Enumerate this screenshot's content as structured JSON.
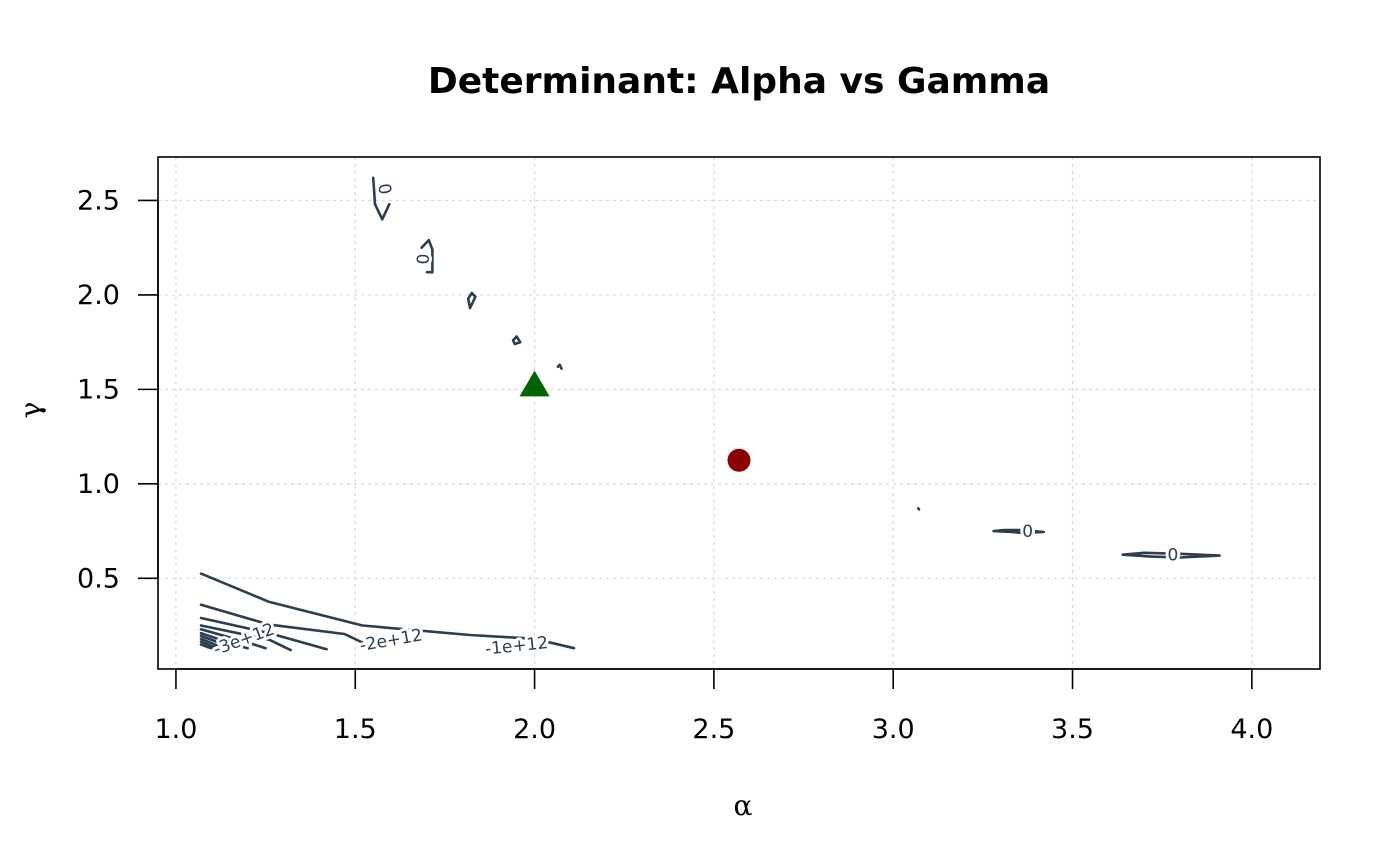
{
  "chart_data": {
    "type": "contour",
    "title": "Determinant: Alpha vs Gamma",
    "xlabel": "α",
    "ylabel": "γ",
    "xlim": [
      0.95,
      4.19
    ],
    "ylim": [
      0.02,
      2.73
    ],
    "x_ticks": [
      1.0,
      1.5,
      2.0,
      2.5,
      3.0,
      3.5,
      4.0
    ],
    "x_tick_labels": [
      "1.0",
      "1.5",
      "2.0",
      "2.5",
      "3.0",
      "3.5",
      "4.0"
    ],
    "y_ticks": [
      0.5,
      1.0,
      1.5,
      2.0,
      2.5
    ],
    "y_tick_labels": [
      "0.5",
      "1.0",
      "1.5",
      "2.0",
      "2.5"
    ],
    "grid": true,
    "contour_color": "#2c3e50",
    "contours": [
      {
        "level": "-1e+12",
        "points": [
          [
            1.07,
            0.525
          ],
          [
            1.26,
            0.375
          ],
          [
            1.52,
            0.25
          ],
          [
            1.82,
            0.2
          ],
          [
            2.0,
            0.18
          ],
          [
            2.11,
            0.13
          ]
        ]
      },
      {
        "level": "-2e+12",
        "points": [
          [
            1.07,
            0.36
          ],
          [
            1.26,
            0.255
          ],
          [
            1.47,
            0.205
          ],
          [
            1.52,
            0.16
          ]
        ]
      },
      {
        "level": "-3e+12",
        "points": [
          [
            1.07,
            0.29
          ],
          [
            1.26,
            0.21
          ],
          [
            1.42,
            0.125
          ]
        ]
      },
      {
        "level": "",
        "points": [
          [
            1.07,
            0.25
          ],
          [
            1.26,
            0.175
          ],
          [
            1.32,
            0.12
          ]
        ]
      },
      {
        "level": "",
        "points": [
          [
            1.07,
            0.23
          ],
          [
            1.2,
            0.16
          ],
          [
            1.25,
            0.13
          ]
        ]
      },
      {
        "level": "",
        "points": [
          [
            1.07,
            0.21
          ],
          [
            1.16,
            0.15
          ],
          [
            1.2,
            0.13
          ]
        ]
      },
      {
        "level": "",
        "points": [
          [
            1.07,
            0.195
          ],
          [
            1.14,
            0.145
          ],
          [
            1.17,
            0.13
          ]
        ]
      },
      {
        "level": "",
        "points": [
          [
            1.07,
            0.18
          ],
          [
            1.12,
            0.14
          ],
          [
            1.14,
            0.13
          ]
        ]
      },
      {
        "level": "",
        "points": [
          [
            1.07,
            0.165
          ],
          [
            1.1,
            0.14
          ],
          [
            1.12,
            0.13
          ]
        ]
      },
      {
        "level": "",
        "points": [
          [
            1.07,
            0.15
          ],
          [
            1.09,
            0.135
          ],
          [
            1.1,
            0.13
          ]
        ]
      },
      {
        "level": "0",
        "points": [
          [
            1.55,
            2.62
          ],
          [
            1.555,
            2.48
          ],
          [
            1.575,
            2.4
          ],
          [
            1.595,
            2.48
          ]
        ]
      },
      {
        "level": "0",
        "points": [
          [
            1.685,
            2.25
          ],
          [
            1.705,
            2.29
          ],
          [
            1.715,
            2.24
          ],
          [
            1.715,
            2.12
          ],
          [
            1.7,
            2.12
          ]
        ]
      },
      {
        "level": "",
        "points": [
          [
            1.815,
            1.98
          ],
          [
            1.825,
            2.01
          ],
          [
            1.835,
            1.99
          ],
          [
            1.82,
            1.93
          ],
          [
            1.815,
            1.98
          ]
        ]
      },
      {
        "level": "",
        "points": [
          [
            1.94,
            1.76
          ],
          [
            1.95,
            1.78
          ],
          [
            1.96,
            1.75
          ],
          [
            1.945,
            1.74
          ],
          [
            1.94,
            1.76
          ]
        ]
      },
      {
        "level": "",
        "points": [
          [
            2.065,
            1.62
          ],
          [
            2.07,
            1.63
          ],
          [
            2.075,
            1.61
          ]
        ]
      },
      {
        "level": "",
        "points": [
          [
            3.07,
            0.87
          ],
          [
            3.072,
            0.865
          ]
        ]
      },
      {
        "level": "0",
        "points": [
          [
            3.28,
            0.75
          ],
          [
            3.33,
            0.745
          ],
          [
            3.36,
            0.74
          ],
          [
            3.42,
            0.745
          ],
          [
            3.36,
            0.755
          ],
          [
            3.31,
            0.755
          ],
          [
            3.28,
            0.75
          ]
        ]
      },
      {
        "level": "0",
        "points": [
          [
            3.64,
            0.625
          ],
          [
            3.72,
            0.615
          ],
          [
            3.8,
            0.61
          ],
          [
            3.91,
            0.62
          ],
          [
            3.8,
            0.63
          ],
          [
            3.7,
            0.635
          ],
          [
            3.64,
            0.625
          ]
        ]
      }
    ],
    "contour_labels": [
      {
        "text": "-1e+12",
        "x": 1.95,
        "y": 0.14,
        "angle": 6
      },
      {
        "text": "-2e+12",
        "x": 1.6,
        "y": 0.17,
        "angle": 10
      },
      {
        "text": "-3e+12",
        "x": 1.19,
        "y": 0.175,
        "angle": 20
      },
      {
        "text": "0",
        "x": 1.58,
        "y": 2.56,
        "angle": -80
      },
      {
        "text": "0",
        "x": 1.685,
        "y": 2.19,
        "angle": -90
      },
      {
        "text": "0",
        "x": 3.375,
        "y": 0.745,
        "angle": 0
      },
      {
        "text": "0",
        "x": 3.78,
        "y": 0.622,
        "angle": 0
      }
    ],
    "markers": [
      {
        "shape": "triangle",
        "x": 2.0,
        "y": 1.52,
        "color": "#006400"
      },
      {
        "shape": "circle",
        "x": 2.57,
        "y": 1.125,
        "color": "#8b0000"
      }
    ]
  }
}
